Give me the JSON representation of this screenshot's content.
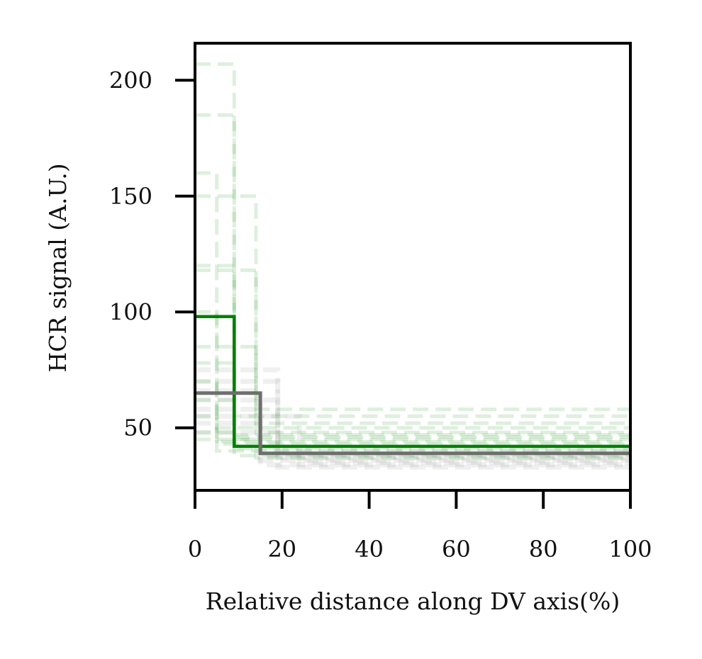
{
  "chart_data": {
    "type": "line",
    "title": "",
    "xlabel": "Relative distance along DV axis(%)",
    "ylabel": "HCR signal (A.U.)",
    "xlim": [
      0,
      100
    ],
    "ylim": [
      23,
      216
    ],
    "xticks": [
      0,
      20,
      40,
      60,
      80,
      100
    ],
    "yticks": [
      50,
      100,
      150,
      200
    ],
    "grid": false,
    "legend": "none",
    "step": true,
    "colors": {
      "green": "#008000",
      "gray": "#6e6e6e",
      "green_faint": "#4aa84a",
      "gray_faint": "#9a9a9a"
    },
    "series": [
      {
        "color": "green",
        "style": "solid",
        "x": [
          0,
          9,
          9,
          100
        ],
        "y": [
          98,
          98,
          42,
          42
        ]
      },
      {
        "color": "gray",
        "style": "solid",
        "x": [
          0,
          15,
          15,
          100
        ],
        "y": [
          65,
          65,
          39,
          39
        ]
      }
    ],
    "background_series": {
      "green": [
        {
          "steps": [
            [
              0,
              207
            ],
            [
              9,
              207
            ],
            [
              9,
              47
            ],
            [
              100,
              47
            ]
          ]
        },
        {
          "steps": [
            [
              0,
              185
            ],
            [
              9,
              185
            ],
            [
              9,
              45
            ],
            [
              100,
              45
            ]
          ]
        },
        {
          "steps": [
            [
              0,
              160
            ],
            [
              5,
              160
            ],
            [
              5,
              44
            ],
            [
              100,
              44
            ]
          ]
        },
        {
          "steps": [
            [
              0,
              150
            ],
            [
              14,
              150
            ],
            [
              14,
              58
            ],
            [
              100,
              58
            ]
          ]
        },
        {
          "steps": [
            [
              0,
              120
            ],
            [
              9,
              120
            ],
            [
              9,
              55
            ],
            [
              100,
              55
            ]
          ]
        },
        {
          "steps": [
            [
              0,
              118
            ],
            [
              14,
              118
            ],
            [
              14,
              52
            ],
            [
              100,
              52
            ]
          ]
        },
        {
          "steps": [
            [
              0,
              100
            ],
            [
              5,
              100
            ],
            [
              5,
              50
            ],
            [
              100,
              50
            ]
          ]
        },
        {
          "steps": [
            [
              0,
              85
            ],
            [
              14,
              85
            ],
            [
              14,
              48
            ],
            [
              100,
              48
            ]
          ]
        },
        {
          "steps": [
            [
              0,
              78
            ],
            [
              9,
              78
            ],
            [
              9,
              46
            ],
            [
              100,
              46
            ]
          ]
        },
        {
          "steps": [
            [
              0,
              70
            ],
            [
              5,
              70
            ],
            [
              5,
              43
            ],
            [
              100,
              43
            ]
          ]
        },
        {
          "steps": [
            [
              0,
              62
            ],
            [
              9,
              62
            ],
            [
              9,
              41
            ],
            [
              100,
              41
            ]
          ]
        },
        {
          "steps": [
            [
              0,
              55
            ],
            [
              5,
              55
            ],
            [
              5,
              40
            ],
            [
              100,
              40
            ]
          ]
        },
        {
          "steps": [
            [
              0,
              48
            ],
            [
              9,
              48
            ],
            [
              9,
              38
            ],
            [
              100,
              38
            ]
          ]
        },
        {
          "steps": [
            [
              0,
              45
            ],
            [
              14,
              45
            ],
            [
              14,
              37
            ],
            [
              100,
              37
            ]
          ]
        }
      ],
      "gray": [
        {
          "steps": [
            [
              0,
              75
            ],
            [
              19,
              75
            ],
            [
              19,
              40
            ],
            [
              100,
              40
            ]
          ]
        },
        {
          "steps": [
            [
              0,
              70
            ],
            [
              19,
              70
            ],
            [
              19,
              39
            ],
            [
              100,
              39
            ]
          ]
        },
        {
          "steps": [
            [
              0,
              66
            ],
            [
              15,
              66
            ],
            [
              15,
              38
            ],
            [
              100,
              38
            ]
          ]
        },
        {
          "steps": [
            [
              0,
              62
            ],
            [
              19,
              62
            ],
            [
              19,
              37
            ],
            [
              100,
              37
            ]
          ]
        },
        {
          "steps": [
            [
              0,
              58
            ],
            [
              15,
              58
            ],
            [
              15,
              36
            ],
            [
              100,
              36
            ]
          ]
        },
        {
          "steps": [
            [
              0,
              55
            ],
            [
              24,
              55
            ],
            [
              24,
              35
            ],
            [
              100,
              35
            ]
          ]
        },
        {
          "steps": [
            [
              0,
              52
            ],
            [
              15,
              52
            ],
            [
              15,
              34
            ],
            [
              100,
              34
            ]
          ]
        },
        {
          "steps": [
            [
              0,
              48
            ],
            [
              19,
              48
            ],
            [
              19,
              33
            ],
            [
              100,
              33
            ]
          ]
        }
      ]
    }
  }
}
